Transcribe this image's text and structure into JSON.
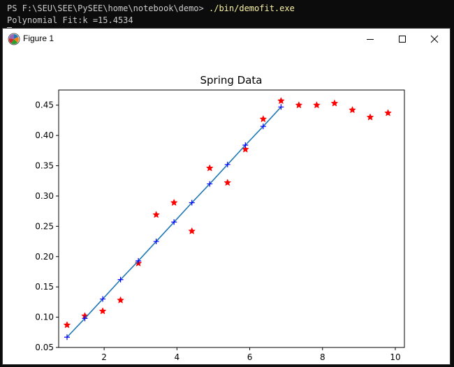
{
  "terminal": {
    "prompt": "PS F:\\SEU\\SEE\\PySEE\\home\\notebook\\demo>",
    "command": "./bin/demofit.exe",
    "output": "Polynomial Fit:k =15.4534"
  },
  "window": {
    "title": "Figure 1",
    "icons": {
      "app": "matplotlib-icon",
      "minimize": "minimize-icon",
      "maximize": "maximize-icon",
      "close": "close-icon"
    }
  },
  "chart_data": {
    "type": "scatter",
    "title": "Spring Data",
    "xlabel": "",
    "ylabel": "",
    "xlim": [
      0.75,
      10.25
    ],
    "ylim": [
      0.05,
      0.475
    ],
    "xticks": [
      2,
      4,
      6,
      8,
      10
    ],
    "yticks": [
      0.05,
      0.1,
      0.15,
      0.2,
      0.25,
      0.3,
      0.35,
      0.4,
      0.45
    ],
    "ytick_labels": [
      "0.05",
      "0.10",
      "0.15",
      "0.20",
      "0.25",
      "0.30",
      "0.35",
      "0.40",
      "0.45"
    ],
    "grid": false,
    "series": [
      {
        "marker": "star",
        "color": "#ff0000",
        "x": [
          0.98,
          1.47,
          1.96,
          2.45,
          2.94,
          3.43,
          3.92,
          4.41,
          4.9,
          5.39,
          5.88,
          6.37,
          6.86,
          7.35,
          7.84,
          8.33,
          8.82,
          9.31,
          9.8
        ],
        "y": [
          0.087,
          0.102,
          0.11,
          0.128,
          0.189,
          0.269,
          0.289,
          0.242,
          0.346,
          0.322,
          0.377,
          0.427,
          0.457,
          0.45,
          0.45,
          0.453,
          0.442,
          0.43,
          0.437
        ]
      },
      {
        "marker": "plus-line",
        "color": "#1f77b4",
        "marker_color": "#0000ff",
        "x": [
          0.98,
          1.47,
          1.96,
          2.45,
          2.94,
          3.43,
          3.92,
          4.41,
          4.9,
          5.39,
          5.88,
          6.37,
          6.86
        ],
        "y": [
          0.067,
          0.098,
          0.13,
          0.162,
          0.193,
          0.225,
          0.257,
          0.289,
          0.32,
          0.352,
          0.384,
          0.415,
          0.447
        ]
      }
    ]
  }
}
